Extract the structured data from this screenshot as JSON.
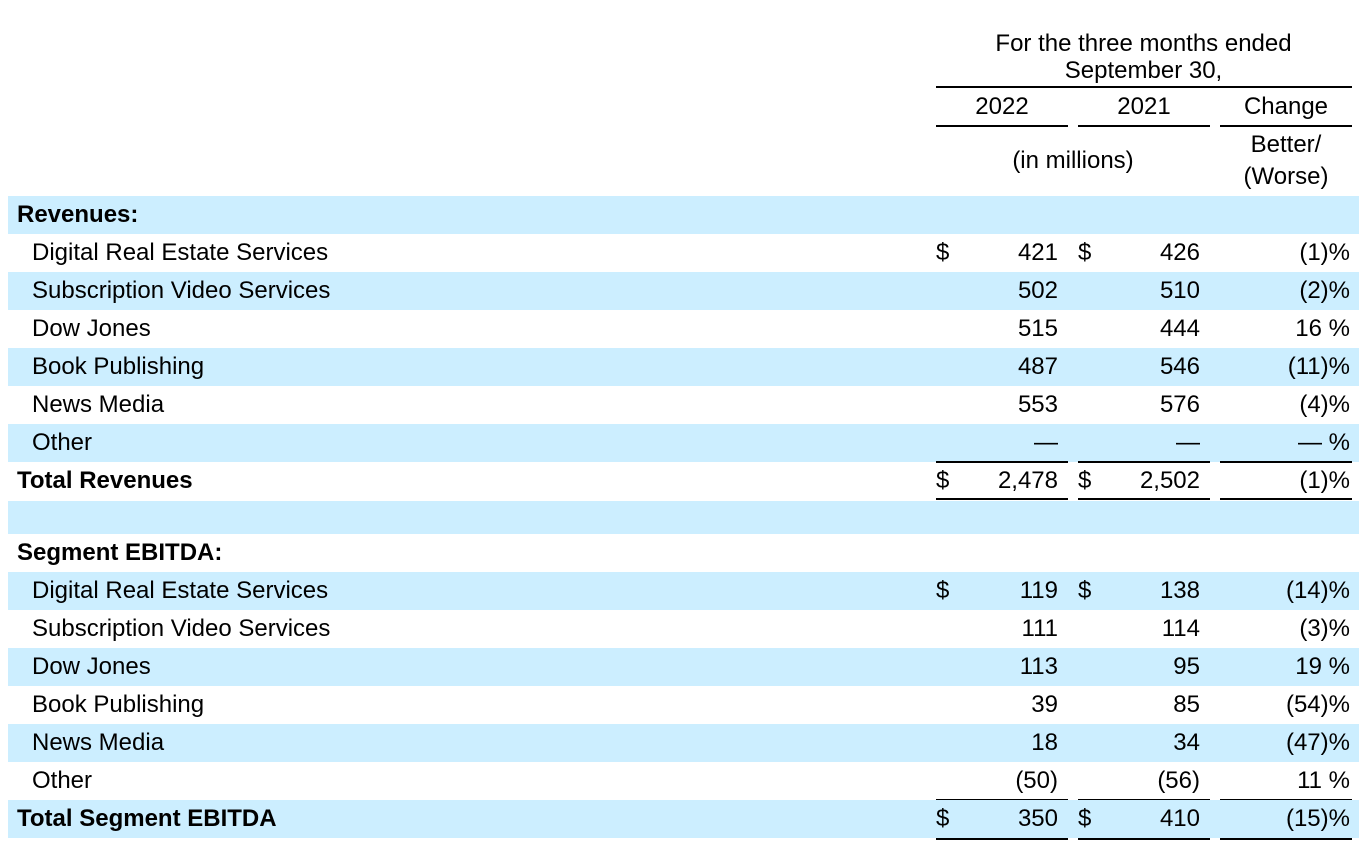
{
  "header": {
    "period_line1": "For the three months ended",
    "period_line2": "September 30,",
    "year_2022": "2022",
    "year_2021": "2021",
    "change": "Change",
    "units": "(in millions)",
    "better_worse_line1": "Better/",
    "better_worse_line2": "(Worse)"
  },
  "revenues": {
    "title": "Revenues:",
    "rows": [
      {
        "label": "Digital Real Estate Services",
        "dollar_2022": "$",
        "v2022": "421",
        "dollar_2021": "$",
        "v2021": "426",
        "change": "(1)%"
      },
      {
        "label": "Subscription Video Services",
        "dollar_2022": "",
        "v2022": "502",
        "dollar_2021": "",
        "v2021": "510",
        "change": "(2)%"
      },
      {
        "label": "Dow Jones",
        "dollar_2022": "",
        "v2022": "515",
        "dollar_2021": "",
        "v2021": "444",
        "change": "16 %"
      },
      {
        "label": "Book Publishing",
        "dollar_2022": "",
        "v2022": "487",
        "dollar_2021": "",
        "v2021": "546",
        "change": "(11)%"
      },
      {
        "label": "News Media",
        "dollar_2022": "",
        "v2022": "553",
        "dollar_2021": "",
        "v2021": "576",
        "change": "(4)%"
      },
      {
        "label": "Other",
        "dollar_2022": "",
        "v2022": "—",
        "dollar_2021": "",
        "v2021": "—",
        "change": "— %"
      }
    ],
    "total": {
      "label": "Total Revenues",
      "dollar_2022": "$",
      "v2022": "2,478",
      "dollar_2021": "$",
      "v2021": "2,502",
      "change": "(1)%"
    }
  },
  "ebitda": {
    "title": "Segment EBITDA:",
    "rows": [
      {
        "label": "Digital Real Estate Services",
        "dollar_2022": "$",
        "v2022": "119",
        "dollar_2021": "$",
        "v2021": "138",
        "change": "(14)%"
      },
      {
        "label": "Subscription Video Services",
        "dollar_2022": "",
        "v2022": "111",
        "dollar_2021": "",
        "v2021": "114",
        "change": "(3)%"
      },
      {
        "label": "Dow Jones",
        "dollar_2022": "",
        "v2022": "113",
        "dollar_2021": "",
        "v2021": "95",
        "change": "19 %"
      },
      {
        "label": "Book Publishing",
        "dollar_2022": "",
        "v2022": "39",
        "dollar_2021": "",
        "v2021": "85",
        "change": "(54)%"
      },
      {
        "label": "News Media",
        "dollar_2022": "",
        "v2022": "18",
        "dollar_2021": "",
        "v2021": "34",
        "change": "(47)%"
      },
      {
        "label": "Other",
        "dollar_2022": "",
        "v2022": "(50)",
        "dollar_2021": "",
        "v2021": "(56)",
        "change": "11 %"
      }
    ],
    "total": {
      "label": "Total Segment EBITDA",
      "dollar_2022": "$",
      "v2022": "350",
      "dollar_2021": "$",
      "v2021": "410",
      "change": "(15)%"
    }
  },
  "colors": {
    "row_shade": "#cceeff",
    "text": "#000000",
    "rule": "#000000"
  }
}
